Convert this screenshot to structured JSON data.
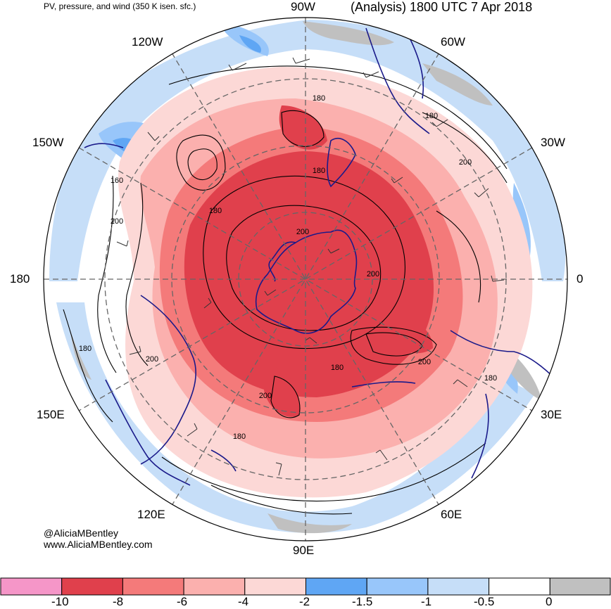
{
  "header": {
    "subtitle": "PV, pressure, and wind (350 K isen. sfc.)",
    "title": "(Analysis) 1800 UTC 7 Apr 2018"
  },
  "credits": {
    "handle": "@AliciaMBentley",
    "website": "www.AliciaMBentley.com"
  },
  "longitude_labels": [
    "90W",
    "60W",
    "30W",
    "0",
    "30E",
    "60E",
    "90E",
    "120E",
    "150E",
    "180",
    "150W",
    "120W"
  ],
  "contour_labels": [
    "180",
    "180",
    "180",
    "160",
    "200",
    "180",
    "200",
    "200",
    "200",
    "180",
    "200",
    "180",
    "200",
    "180",
    "180",
    "200"
  ],
  "colorbar": {
    "colors": [
      "#f596c8",
      "#e0404c",
      "#f47a7a",
      "#fbb0ae",
      "#fcd8d6",
      "#5fa6f4",
      "#98c6fa",
      "#c6def8",
      "#ffffff",
      "#c0c0c0"
    ],
    "labels": [
      "-10",
      "-8",
      "-6",
      "-4",
      "-2",
      "-1.5",
      "-1",
      "-0.5",
      "0"
    ]
  },
  "palette": {
    "strong_negative": "#e0404c",
    "negative": "#f47a7a",
    "weak_negative": "#fcd8d6",
    "light_blue": "#98c6fa",
    "pale_blue": "#c6def8",
    "gray": "#c0c0c0",
    "coastline": "#1a1a8a"
  }
}
